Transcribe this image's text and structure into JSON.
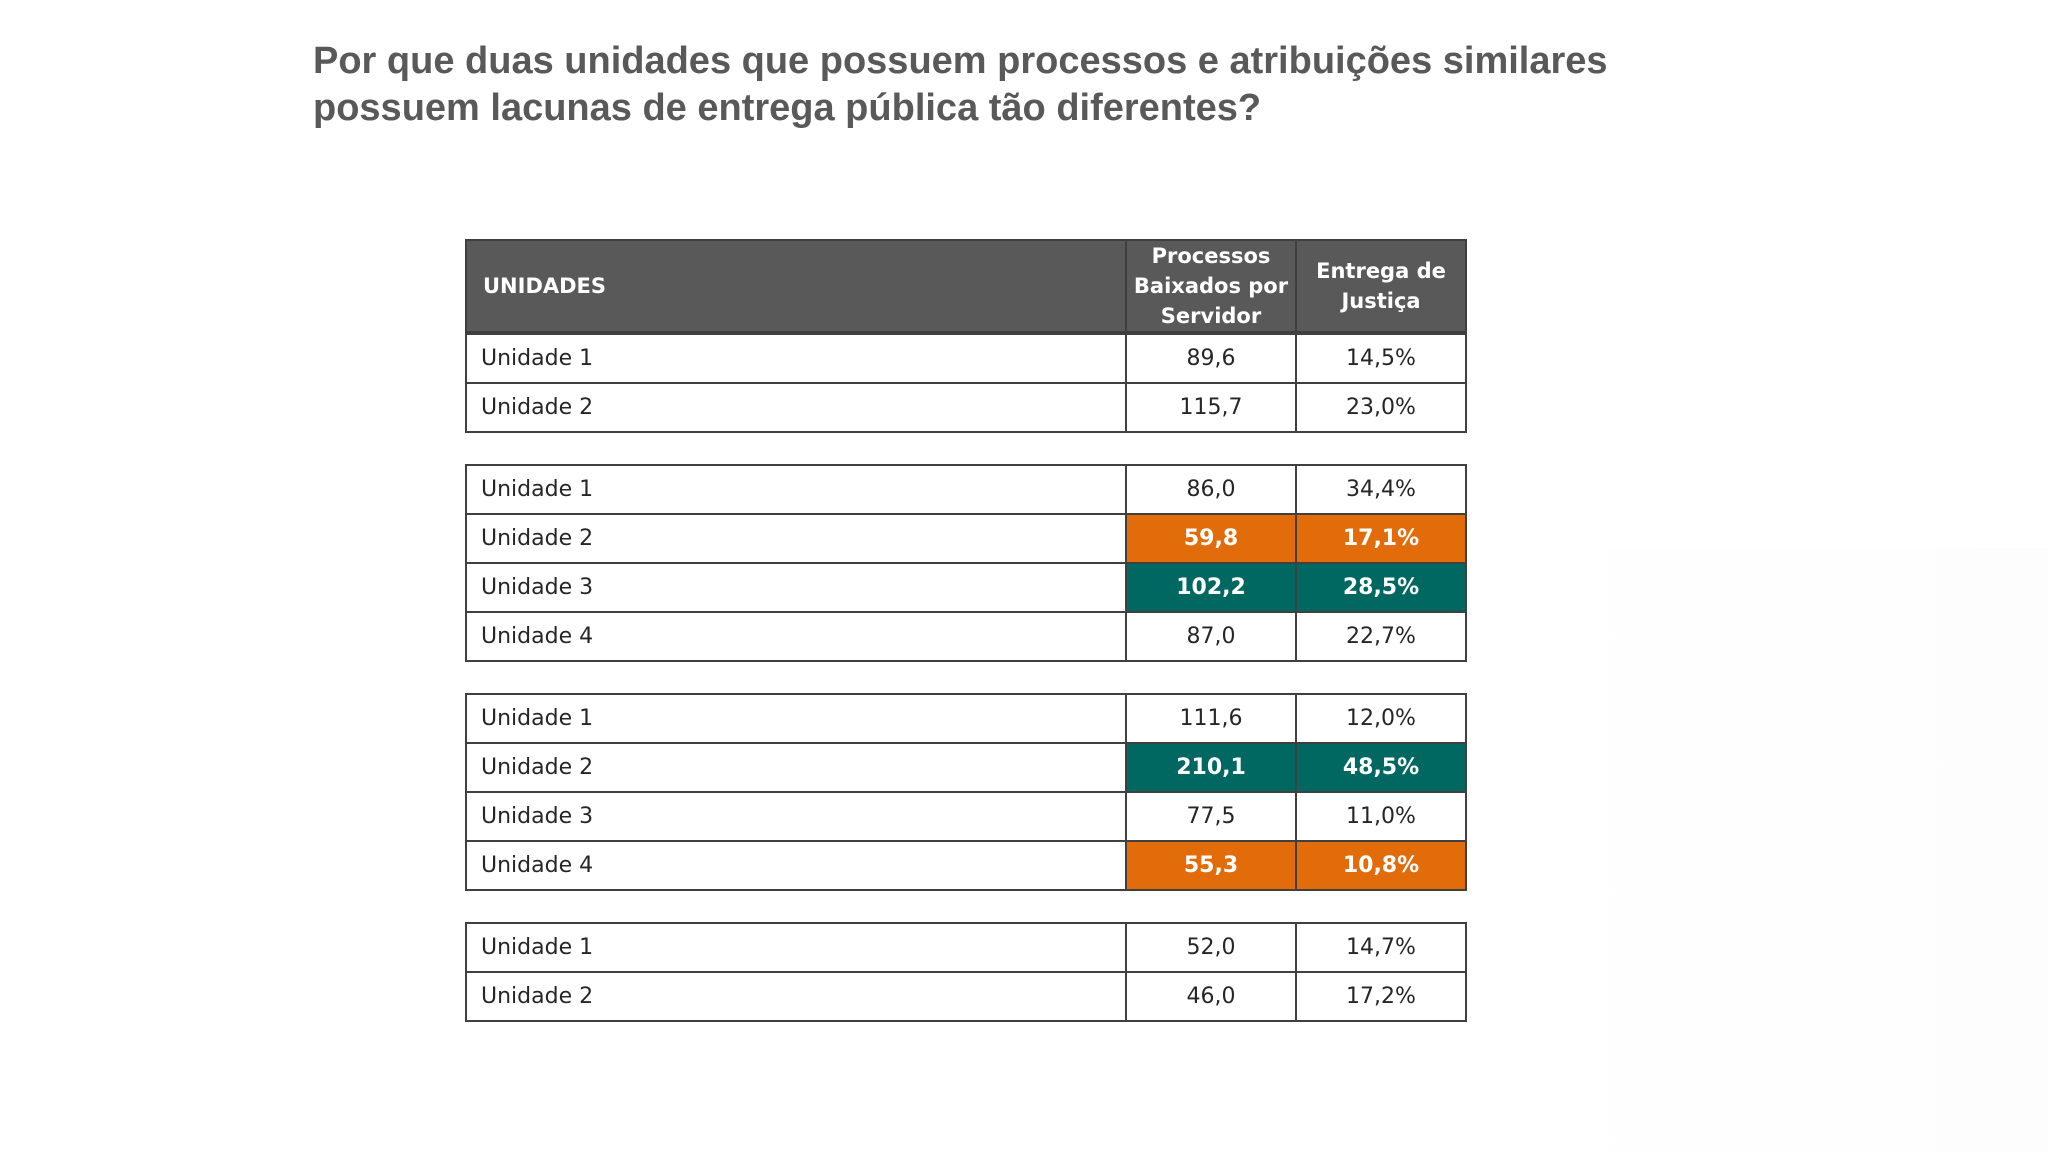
{
  "title": {
    "line1": "Por que duas unidades que possuem processos e atribuições similares",
    "line2": "possuem lacunas de entrega pública tão diferentes?"
  },
  "table": {
    "headers": {
      "col1": "UNIDADES",
      "col2_lines": [
        "Processos",
        "Baixados por",
        "Servidor"
      ],
      "col3_lines": [
        "Entrega de",
        "Justiça"
      ]
    },
    "groups": [
      {
        "rows": [
          {
            "unit": "Unidade 1",
            "processos": "89,6",
            "entrega": "14,5%",
            "highlight": "none"
          },
          {
            "unit": "Unidade 2",
            "processos": "115,7",
            "entrega": "23,0%",
            "highlight": "none"
          }
        ]
      },
      {
        "rows": [
          {
            "unit": "Unidade 1",
            "processos": "86,0",
            "entrega": "34,4%",
            "highlight": "none"
          },
          {
            "unit": "Unidade 2",
            "processos": "59,8",
            "entrega": "17,1%",
            "highlight": "orange"
          },
          {
            "unit": "Unidade 3",
            "processos": "102,2",
            "entrega": "28,5%",
            "highlight": "teal"
          },
          {
            "unit": "Unidade 4",
            "processos": "87,0",
            "entrega": "22,7%",
            "highlight": "none"
          }
        ]
      },
      {
        "rows": [
          {
            "unit": "Unidade 1",
            "processos": "111,6",
            "entrega": "12,0%",
            "highlight": "none"
          },
          {
            "unit": "Unidade 2",
            "processos": "210,1",
            "entrega": "48,5%",
            "highlight": "teal"
          },
          {
            "unit": "Unidade 3",
            "processos": "77,5",
            "entrega": "11,0%",
            "highlight": "none"
          },
          {
            "unit": "Unidade 4",
            "processos": "55,3",
            "entrega": "10,8%",
            "highlight": "orange"
          }
        ]
      },
      {
        "rows": [
          {
            "unit": "Unidade 1",
            "processos": "52,0",
            "entrega": "14,7%",
            "highlight": "none"
          },
          {
            "unit": "Unidade 2",
            "processos": "46,0",
            "entrega": "17,2%",
            "highlight": "none"
          }
        ]
      }
    ]
  },
  "colors": {
    "header_bg": "#595959",
    "highlight_orange": "#e36c0a",
    "highlight_teal": "#006860",
    "title_text": "#595959"
  }
}
